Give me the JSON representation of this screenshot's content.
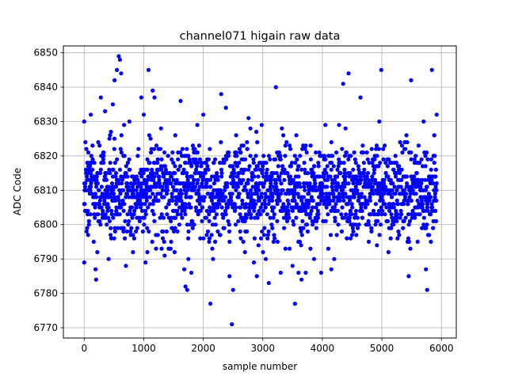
{
  "chart_data": {
    "type": "scatter",
    "title": "channel071 higain raw data",
    "xlabel": "sample number",
    "ylabel": "ADC Code",
    "xlim": [
      -350,
      6250
    ],
    "ylim": [
      6767,
      6852
    ],
    "xticks": [
      0,
      1000,
      2000,
      3000,
      4000,
      5000,
      6000
    ],
    "yticks": [
      6770,
      6780,
      6790,
      6800,
      6810,
      6820,
      6830,
      6840,
      6850
    ],
    "grid": true,
    "marker_color": "#0000ff",
    "series": [
      {
        "name": "",
        "summary": {
          "x_range": [
            0,
            5920
          ],
          "typical_y_range": [
            6795,
            6825
          ],
          "center_y": 6810
        },
        "points": [
          [
            0,
            6789
          ],
          [
            0,
            6830
          ],
          [
            20,
            6824
          ],
          [
            60,
            6818
          ],
          [
            80,
            6800
          ],
          [
            110,
            6832
          ],
          [
            160,
            6795
          ],
          [
            190,
            6787
          ],
          [
            200,
            6784
          ],
          [
            220,
            6792
          ],
          [
            280,
            6837
          ],
          [
            320,
            6819
          ],
          [
            350,
            6833
          ],
          [
            410,
            6790
          ],
          [
            450,
            6827
          ],
          [
            480,
            6835
          ],
          [
            510,
            6842
          ],
          [
            550,
            6845
          ],
          [
            580,
            6849
          ],
          [
            600,
            6848
          ],
          [
            620,
            6844
          ],
          [
            660,
            6798
          ],
          [
            700,
            6788
          ],
          [
            760,
            6830
          ],
          [
            820,
            6792
          ],
          [
            900,
            6820
          ],
          [
            960,
            6837
          ],
          [
            1000,
            6832
          ],
          [
            1030,
            6789
          ],
          [
            1060,
            6792
          ],
          [
            1080,
            6845
          ],
          [
            1150,
            6839
          ],
          [
            1180,
            6837
          ],
          [
            1250,
            6822
          ],
          [
            1300,
            6793
          ],
          [
            1350,
            6791
          ],
          [
            1460,
            6795
          ],
          [
            1530,
            6826
          ],
          [
            1620,
            6836
          ],
          [
            1680,
            6787
          ],
          [
            1700,
            6782
          ],
          [
            1730,
            6781
          ],
          [
            1750,
            6790
          ],
          [
            1800,
            6786
          ],
          [
            1900,
            6829
          ],
          [
            2000,
            6832
          ],
          [
            2050,
            6802
          ],
          [
            2120,
            6777
          ],
          [
            2200,
            6795
          ],
          [
            2300,
            6838
          ],
          [
            2380,
            6834
          ],
          [
            2440,
            6785
          ],
          [
            2480,
            6771
          ],
          [
            2500,
            6781
          ],
          [
            2550,
            6805
          ],
          [
            2620,
            6798
          ],
          [
            2700,
            6792
          ],
          [
            2760,
            6831
          ],
          [
            2800,
            6803
          ],
          [
            2850,
            6789
          ],
          [
            2900,
            6785
          ],
          [
            2980,
            6829
          ],
          [
            3050,
            6790
          ],
          [
            3100,
            6783
          ],
          [
            3160,
            6799
          ],
          [
            3220,
            6840
          ],
          [
            3300,
            6786
          ],
          [
            3380,
            6823
          ],
          [
            3450,
            6793
          ],
          [
            3500,
            6788
          ],
          [
            3540,
            6777
          ],
          [
            3600,
            6786
          ],
          [
            3650,
            6784
          ],
          [
            3720,
            6786
          ],
          [
            3800,
            6793
          ],
          [
            3860,
            6790
          ],
          [
            3920,
            6803
          ],
          [
            3980,
            6786
          ],
          [
            4050,
            6829
          ],
          [
            4100,
            6793
          ],
          [
            4150,
            6787
          ],
          [
            4200,
            6790
          ],
          [
            4280,
            6829
          ],
          [
            4350,
            6841
          ],
          [
            4380,
            6820
          ],
          [
            4440,
            6844
          ],
          [
            4500,
            6797
          ],
          [
            4560,
            6800
          ],
          [
            4640,
            6837
          ],
          [
            4700,
            6815
          ],
          [
            4780,
            6795
          ],
          [
            4860,
            6804
          ],
          [
            4920,
            6820
          ],
          [
            4990,
            6845
          ],
          [
            5050,
            6810
          ],
          [
            5110,
            6792
          ],
          [
            5180,
            6812
          ],
          [
            5250,
            6801
          ],
          [
            5300,
            6815
          ],
          [
            5380,
            6822
          ],
          [
            5450,
            6785
          ],
          [
            5490,
            6842
          ],
          [
            5550,
            6818
          ],
          [
            5600,
            6795
          ],
          [
            5650,
            6808
          ],
          [
            5700,
            6830
          ],
          [
            5740,
            6787
          ],
          [
            5760,
            6781
          ],
          [
            5800,
            6808
          ],
          [
            5840,
            6845
          ],
          [
            5880,
            6826
          ],
          [
            5920,
            6832
          ]
        ]
      }
    ]
  }
}
